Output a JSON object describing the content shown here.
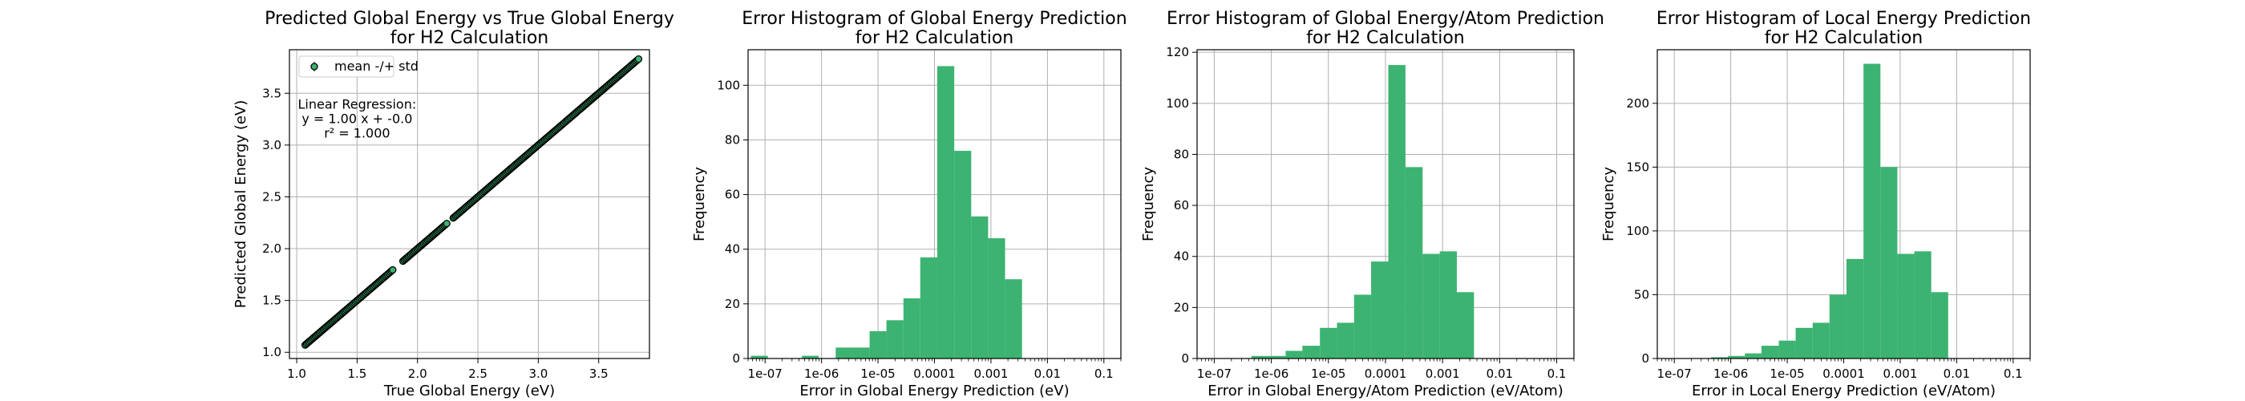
{
  "chart_data": [
    {
      "type": "scatter",
      "title_line1": "Predicted Global Energy vs True Global Energy",
      "title_line2": "for H2 Calculation",
      "xlabel": "True Global Energy (eV)",
      "ylabel": "Predicted Global Energy (eV)",
      "xlim": [
        0.94,
        3.92
      ],
      "ylim": [
        0.94,
        3.92
      ],
      "xticks": [
        1.0,
        1.5,
        2.0,
        2.5,
        3.0,
        3.5
      ],
      "yticks": [
        1.0,
        1.5,
        2.0,
        2.5,
        3.0,
        3.5
      ],
      "tick_labels": [
        "1.0",
        "1.5",
        "2.0",
        "2.5",
        "3.0",
        "3.5"
      ],
      "grid": true,
      "legend": {
        "label": "mean -/+ std",
        "placement": "top-left"
      },
      "annotation": [
        "Linear Regression:",
        "y = 1.00 x + -0.0",
        "r² = 1.000"
      ],
      "x_min": 1.07,
      "x_max": 3.83,
      "point_count": 260,
      "gaps": [
        [
          1.8,
          1.87
        ],
        [
          2.25,
          2.29
        ]
      ],
      "color": "#3cb371"
    },
    {
      "type": "bar",
      "title_line1": "Error Histogram of Global Energy Prediction",
      "title_line2": "for H2 Calculation",
      "xlabel": "Error in Global Energy Prediction (eV)",
      "ylabel": "Frequency",
      "x_scale": "log",
      "xlim": [
        5e-08,
        0.2
      ],
      "ylim": [
        0,
        113
      ],
      "xticks": [
        1e-07,
        1e-06,
        1e-05,
        0.0001,
        0.001,
        0.01,
        0.1
      ],
      "xtick_labels": [
        "1e-07",
        "1e-06",
        "1e-05",
        "0.0001",
        "0.001",
        "0.01",
        "0.1"
      ],
      "yticks": [
        0,
        20,
        40,
        60,
        80,
        100
      ],
      "grid": true,
      "color": "#3cb371",
      "bin_edges": [
        5.6e-08,
        1.12e-07,
        2.2e-07,
        4.5e-07,
        8.9e-07,
        1.78e-06,
        3.5e-06,
        7.1e-06,
        1.41e-05,
        2.82e-05,
        5.6e-05,
        0.000112,
        0.000224,
        0.000447,
        0.000891,
        0.00178,
        0.00355,
        0.00708,
        0.0141,
        0.0282,
        0.0562,
        0.112
      ],
      "counts": [
        1,
        0,
        0,
        1,
        0,
        4,
        4,
        10,
        14,
        22,
        37,
        107,
        76,
        52,
        44,
        29,
        0,
        0,
        0,
        0,
        0
      ]
    },
    {
      "type": "bar",
      "title_line1": "Error Histogram of Global Energy/Atom Prediction",
      "title_line2": "for H2 Calculation",
      "xlabel": "Error in Global Energy/Atom Prediction (eV/Atom)",
      "ylabel": "Frequency",
      "x_scale": "log",
      "xlim": [
        5e-08,
        0.2
      ],
      "ylim": [
        0,
        121
      ],
      "xticks": [
        1e-07,
        1e-06,
        1e-05,
        0.0001,
        0.001,
        0.01,
        0.1
      ],
      "xtick_labels": [
        "1e-07",
        "1e-06",
        "1e-05",
        "0.0001",
        "0.001",
        "0.01",
        "0.1"
      ],
      "yticks": [
        0,
        20,
        40,
        60,
        80,
        100,
        120
      ],
      "grid": true,
      "color": "#3cb371",
      "bin_edges": [
        5.6e-08,
        1.12e-07,
        2.2e-07,
        4.5e-07,
        8.9e-07,
        1.78e-06,
        3.5e-06,
        7.1e-06,
        1.41e-05,
        2.82e-05,
        5.6e-05,
        0.000112,
        0.000224,
        0.000447,
        0.000891,
        0.00178,
        0.00355,
        0.00708,
        0.0141,
        0.0282,
        0.0562,
        0.112
      ],
      "counts": [
        0,
        0,
        0,
        1,
        1,
        3,
        5,
        12,
        14,
        25,
        38,
        115,
        75,
        41,
        42,
        26,
        0,
        0,
        0,
        0,
        0
      ]
    },
    {
      "type": "bar",
      "title_line1": "Error Histogram of Local Energy Prediction",
      "title_line2": "for H2 Calculation",
      "xlabel": "Error in Local Energy Prediction (eV/Atom)",
      "ylabel": "Frequency",
      "x_scale": "log",
      "xlim": [
        5e-08,
        0.2
      ],
      "ylim": [
        0,
        242
      ],
      "xticks": [
        1e-07,
        1e-06,
        1e-05,
        0.0001,
        0.001,
        0.01,
        0.1
      ],
      "xtick_labels": [
        "1e-07",
        "1e-06",
        "1e-05",
        "0.0001",
        "0.001",
        "0.01",
        "0.1"
      ],
      "yticks": [
        0,
        50,
        100,
        150,
        200
      ],
      "grid": true,
      "color": "#3cb371",
      "bin_edges": [
        5.6e-08,
        1.12e-07,
        2.2e-07,
        4.5e-07,
        8.9e-07,
        1.78e-06,
        3.5e-06,
        7.1e-06,
        1.41e-05,
        2.82e-05,
        5.6e-05,
        0.000112,
        0.000224,
        0.000447,
        0.000891,
        0.00178,
        0.00355,
        0.00708,
        0.0141,
        0.0282,
        0.0562,
        0.112
      ],
      "counts": [
        0,
        0,
        0,
        1,
        2,
        4,
        10,
        14,
        24,
        28,
        50,
        78,
        231,
        150,
        82,
        84,
        52,
        0,
        0,
        0,
        0
      ]
    }
  ]
}
